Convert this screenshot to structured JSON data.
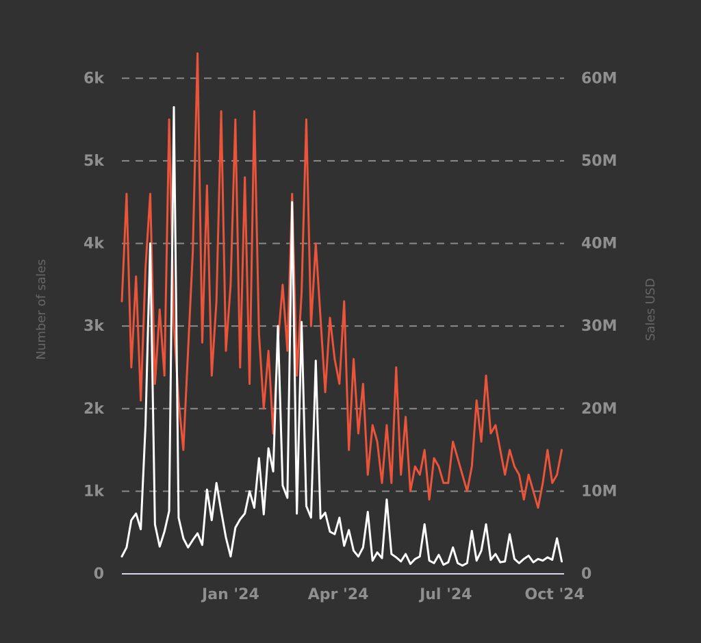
{
  "chart_data": {
    "type": "line",
    "title": "",
    "ylabel": "Number of sales",
    "y2label": "Sales USD",
    "ylim": [
      0,
      6400
    ],
    "y2lim": [
      0,
      64000000
    ],
    "x_ticks": [
      "Jan '24",
      "Apr '24",
      "Jul '24",
      "Oct '24"
    ],
    "y_ticks": [
      "0",
      "1k",
      "2k",
      "3k",
      "4k",
      "5k",
      "6k"
    ],
    "y2_ticks": [
      "0",
      "10M",
      "20M",
      "30M",
      "40M",
      "50M",
      "60M"
    ],
    "grid": true,
    "colors": {
      "background": "#313131",
      "sales_count": "#e9543a",
      "sales_usd": "#ffffff",
      "grid": "#8b8b8b",
      "tick": "#8f8f8f",
      "axis_title": "#666666"
    },
    "series": [
      {
        "axis": "left",
        "x": [
          "2023-10-01",
          "2023-10-05",
          "2023-10-09",
          "2023-10-13",
          "2023-10-17",
          "2023-10-21",
          "2023-10-25",
          "2023-10-29",
          "2023-11-02",
          "2023-11-06",
          "2023-11-10",
          "2023-11-14",
          "2023-11-18",
          "2023-11-22",
          "2023-11-26",
          "2023-11-30",
          "2023-12-04",
          "2023-12-08",
          "2023-12-12",
          "2023-12-16",
          "2023-12-20",
          "2023-12-24",
          "2023-12-28",
          "2024-01-01",
          "2024-01-05",
          "2024-01-09",
          "2024-01-13",
          "2024-01-17",
          "2024-01-21",
          "2024-01-25",
          "2024-01-29",
          "2024-02-02",
          "2024-02-06",
          "2024-02-10",
          "2024-02-14",
          "2024-02-18",
          "2024-02-22",
          "2024-02-26",
          "2024-03-01",
          "2024-03-05",
          "2024-03-09",
          "2024-03-13",
          "2024-03-17",
          "2024-03-21",
          "2024-03-25",
          "2024-03-29",
          "2024-04-02",
          "2024-04-06",
          "2024-04-10",
          "2024-04-14",
          "2024-04-18",
          "2024-04-22",
          "2024-04-26",
          "2024-04-30",
          "2024-05-04",
          "2024-05-08",
          "2024-05-12",
          "2024-05-16",
          "2024-05-20",
          "2024-05-24",
          "2024-05-28",
          "2024-06-01",
          "2024-06-05",
          "2024-06-09",
          "2024-06-13",
          "2024-06-17",
          "2024-06-21",
          "2024-06-25",
          "2024-06-29",
          "2024-07-03",
          "2024-07-07",
          "2024-07-11",
          "2024-07-15",
          "2024-07-19",
          "2024-07-23",
          "2024-07-27",
          "2024-07-31",
          "2024-08-04",
          "2024-08-08",
          "2024-08-12",
          "2024-08-16",
          "2024-08-20",
          "2024-08-24",
          "2024-08-28",
          "2024-09-01",
          "2024-09-05",
          "2024-09-09",
          "2024-09-13",
          "2024-09-17",
          "2024-09-21",
          "2024-09-25",
          "2024-09-29",
          "2024-10-03",
          "2024-10-07"
        ],
        "values": [
          3300,
          4600,
          2500,
          3600,
          2100,
          3700,
          4600,
          2300,
          3200,
          2400,
          5500,
          3000,
          2100,
          1500,
          2700,
          3900,
          6300,
          2800,
          4700,
          2400,
          3300,
          5600,
          2700,
          3500,
          5500,
          2500,
          4800,
          2300,
          5600,
          2900,
          2000,
          2700,
          1700,
          2800,
          3500,
          2700,
          4600,
          2400,
          3400,
          5500,
          3000,
          4000,
          3100,
          2200,
          3100,
          2600,
          2300,
          3300,
          1500,
          2600,
          1700,
          2300,
          1200,
          1800,
          1600,
          1100,
          1800,
          1100,
          2500,
          1200,
          1900,
          1000,
          1300,
          1200,
          1500,
          900,
          1400,
          1300,
          1100,
          1100,
          1600,
          1400,
          1200,
          1000,
          1300,
          2100,
          1600,
          2400,
          1700,
          1800,
          1500,
          1200,
          1500,
          1300,
          1200,
          900,
          1200,
          1000,
          800,
          1100,
          1500,
          1100,
          1200,
          1500
        ]
      },
      {
        "axis": "right",
        "x": [
          "2023-10-01",
          "2023-10-05",
          "2023-10-09",
          "2023-10-13",
          "2023-10-17",
          "2023-10-21",
          "2023-10-25",
          "2023-10-29",
          "2023-11-02",
          "2023-11-06",
          "2023-11-10",
          "2023-11-14",
          "2023-11-18",
          "2023-11-22",
          "2023-11-26",
          "2023-11-30",
          "2023-12-04",
          "2023-12-08",
          "2023-12-12",
          "2023-12-16",
          "2023-12-20",
          "2023-12-24",
          "2023-12-28",
          "2024-01-01",
          "2024-01-05",
          "2024-01-09",
          "2024-01-13",
          "2024-01-17",
          "2024-01-21",
          "2024-01-25",
          "2024-01-29",
          "2024-02-02",
          "2024-02-06",
          "2024-02-10",
          "2024-02-14",
          "2024-02-18",
          "2024-02-22",
          "2024-02-26",
          "2024-03-01",
          "2024-03-05",
          "2024-03-09",
          "2024-03-13",
          "2024-03-17",
          "2024-03-21",
          "2024-03-25",
          "2024-03-29",
          "2024-04-02",
          "2024-04-06",
          "2024-04-10",
          "2024-04-14",
          "2024-04-18",
          "2024-04-22",
          "2024-04-26",
          "2024-04-30",
          "2024-05-04",
          "2024-05-08",
          "2024-05-12",
          "2024-05-16",
          "2024-05-20",
          "2024-05-24",
          "2024-05-28",
          "2024-06-01",
          "2024-06-05",
          "2024-06-09",
          "2024-06-13",
          "2024-06-17",
          "2024-06-21",
          "2024-06-25",
          "2024-06-29",
          "2024-07-03",
          "2024-07-07",
          "2024-07-11",
          "2024-07-15",
          "2024-07-19",
          "2024-07-23",
          "2024-07-27",
          "2024-07-31",
          "2024-08-04",
          "2024-08-08",
          "2024-08-12",
          "2024-08-16",
          "2024-08-20",
          "2024-08-24",
          "2024-08-28",
          "2024-09-01",
          "2024-09-05",
          "2024-09-09",
          "2024-09-13",
          "2024-09-17",
          "2024-09-21",
          "2024-09-25",
          "2024-09-29",
          "2024-10-03",
          "2024-10-07"
        ],
        "values": [
          2100000,
          3200000,
          6500000,
          7300000,
          5400000,
          18000000,
          40000000,
          6000000,
          3300000,
          5100000,
          7600000,
          56500000,
          6800000,
          4300000,
          3200000,
          4100000,
          4900000,
          3500000,
          10200000,
          6500000,
          11000000,
          7600000,
          4400000,
          2100000,
          5600000,
          6600000,
          7300000,
          10000000,
          8000000,
          14000000,
          7200000,
          15200000,
          12400000,
          30000000,
          10700000,
          9200000,
          45000000,
          7300000,
          30500000,
          8200000,
          6800000,
          25800000,
          6700000,
          7400000,
          5100000,
          4800000,
          6800000,
          3400000,
          5300000,
          2800000,
          2100000,
          3200000,
          7500000,
          1600000,
          2600000,
          1900000,
          9000000,
          2400000,
          2000000,
          1500000,
          2400000,
          1200000,
          1800000,
          2100000,
          6000000,
          1600000,
          1300000,
          2300000,
          1100000,
          1400000,
          3200000,
          1300000,
          1000000,
          1300000,
          5200000,
          1600000,
          2800000,
          6000000,
          1700000,
          2400000,
          1400000,
          1500000,
          4800000,
          1800000,
          1300000,
          1800000,
          2200000,
          1400000,
          1800000,
          1600000,
          2000000,
          1700000,
          4300000,
          1500000
        ]
      }
    ]
  }
}
